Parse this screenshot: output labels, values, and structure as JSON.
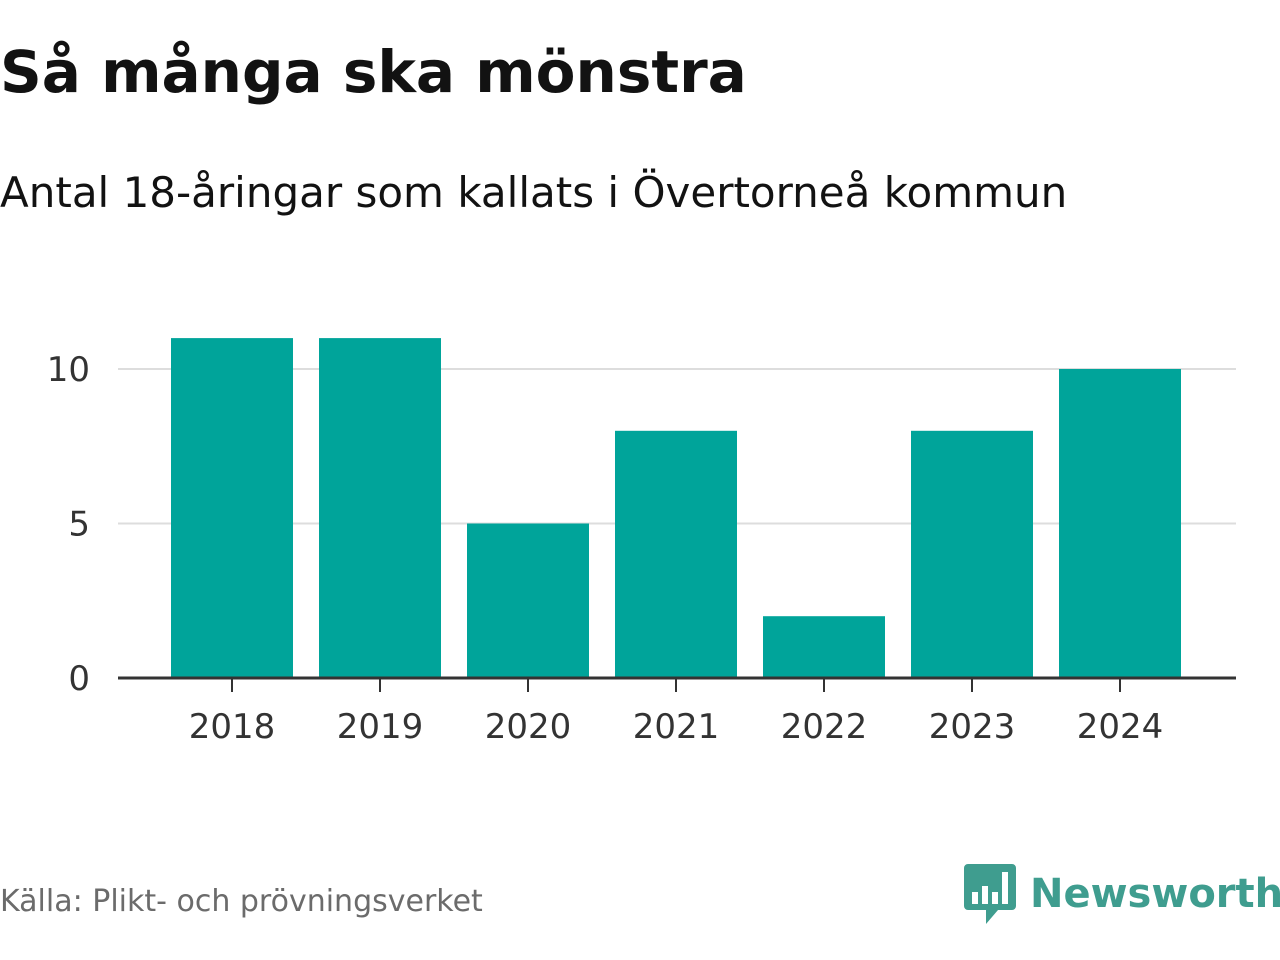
{
  "header": {
    "title": "Så många ska mönstra",
    "subtitle": "Antal 18-åringar som kallats i Övertorneå kommun"
  },
  "footer": {
    "source": "Källa: Plikt- och prövningsverket",
    "brand": "Newsworthy",
    "brand_icon": "newsworthy-logo-icon"
  },
  "colors": {
    "bar": "#00a49a",
    "grid": "#dddddd",
    "axis": "#333333",
    "brand": "#3f9d8f"
  },
  "chart_data": {
    "type": "bar",
    "categories": [
      "2018",
      "2019",
      "2020",
      "2021",
      "2022",
      "2023",
      "2024"
    ],
    "values": [
      11,
      11,
      5,
      8,
      2,
      8,
      10
    ],
    "y_ticks": [
      0,
      5,
      10
    ],
    "ylim": [
      0,
      11
    ],
    "grid": true,
    "legend": "none"
  }
}
